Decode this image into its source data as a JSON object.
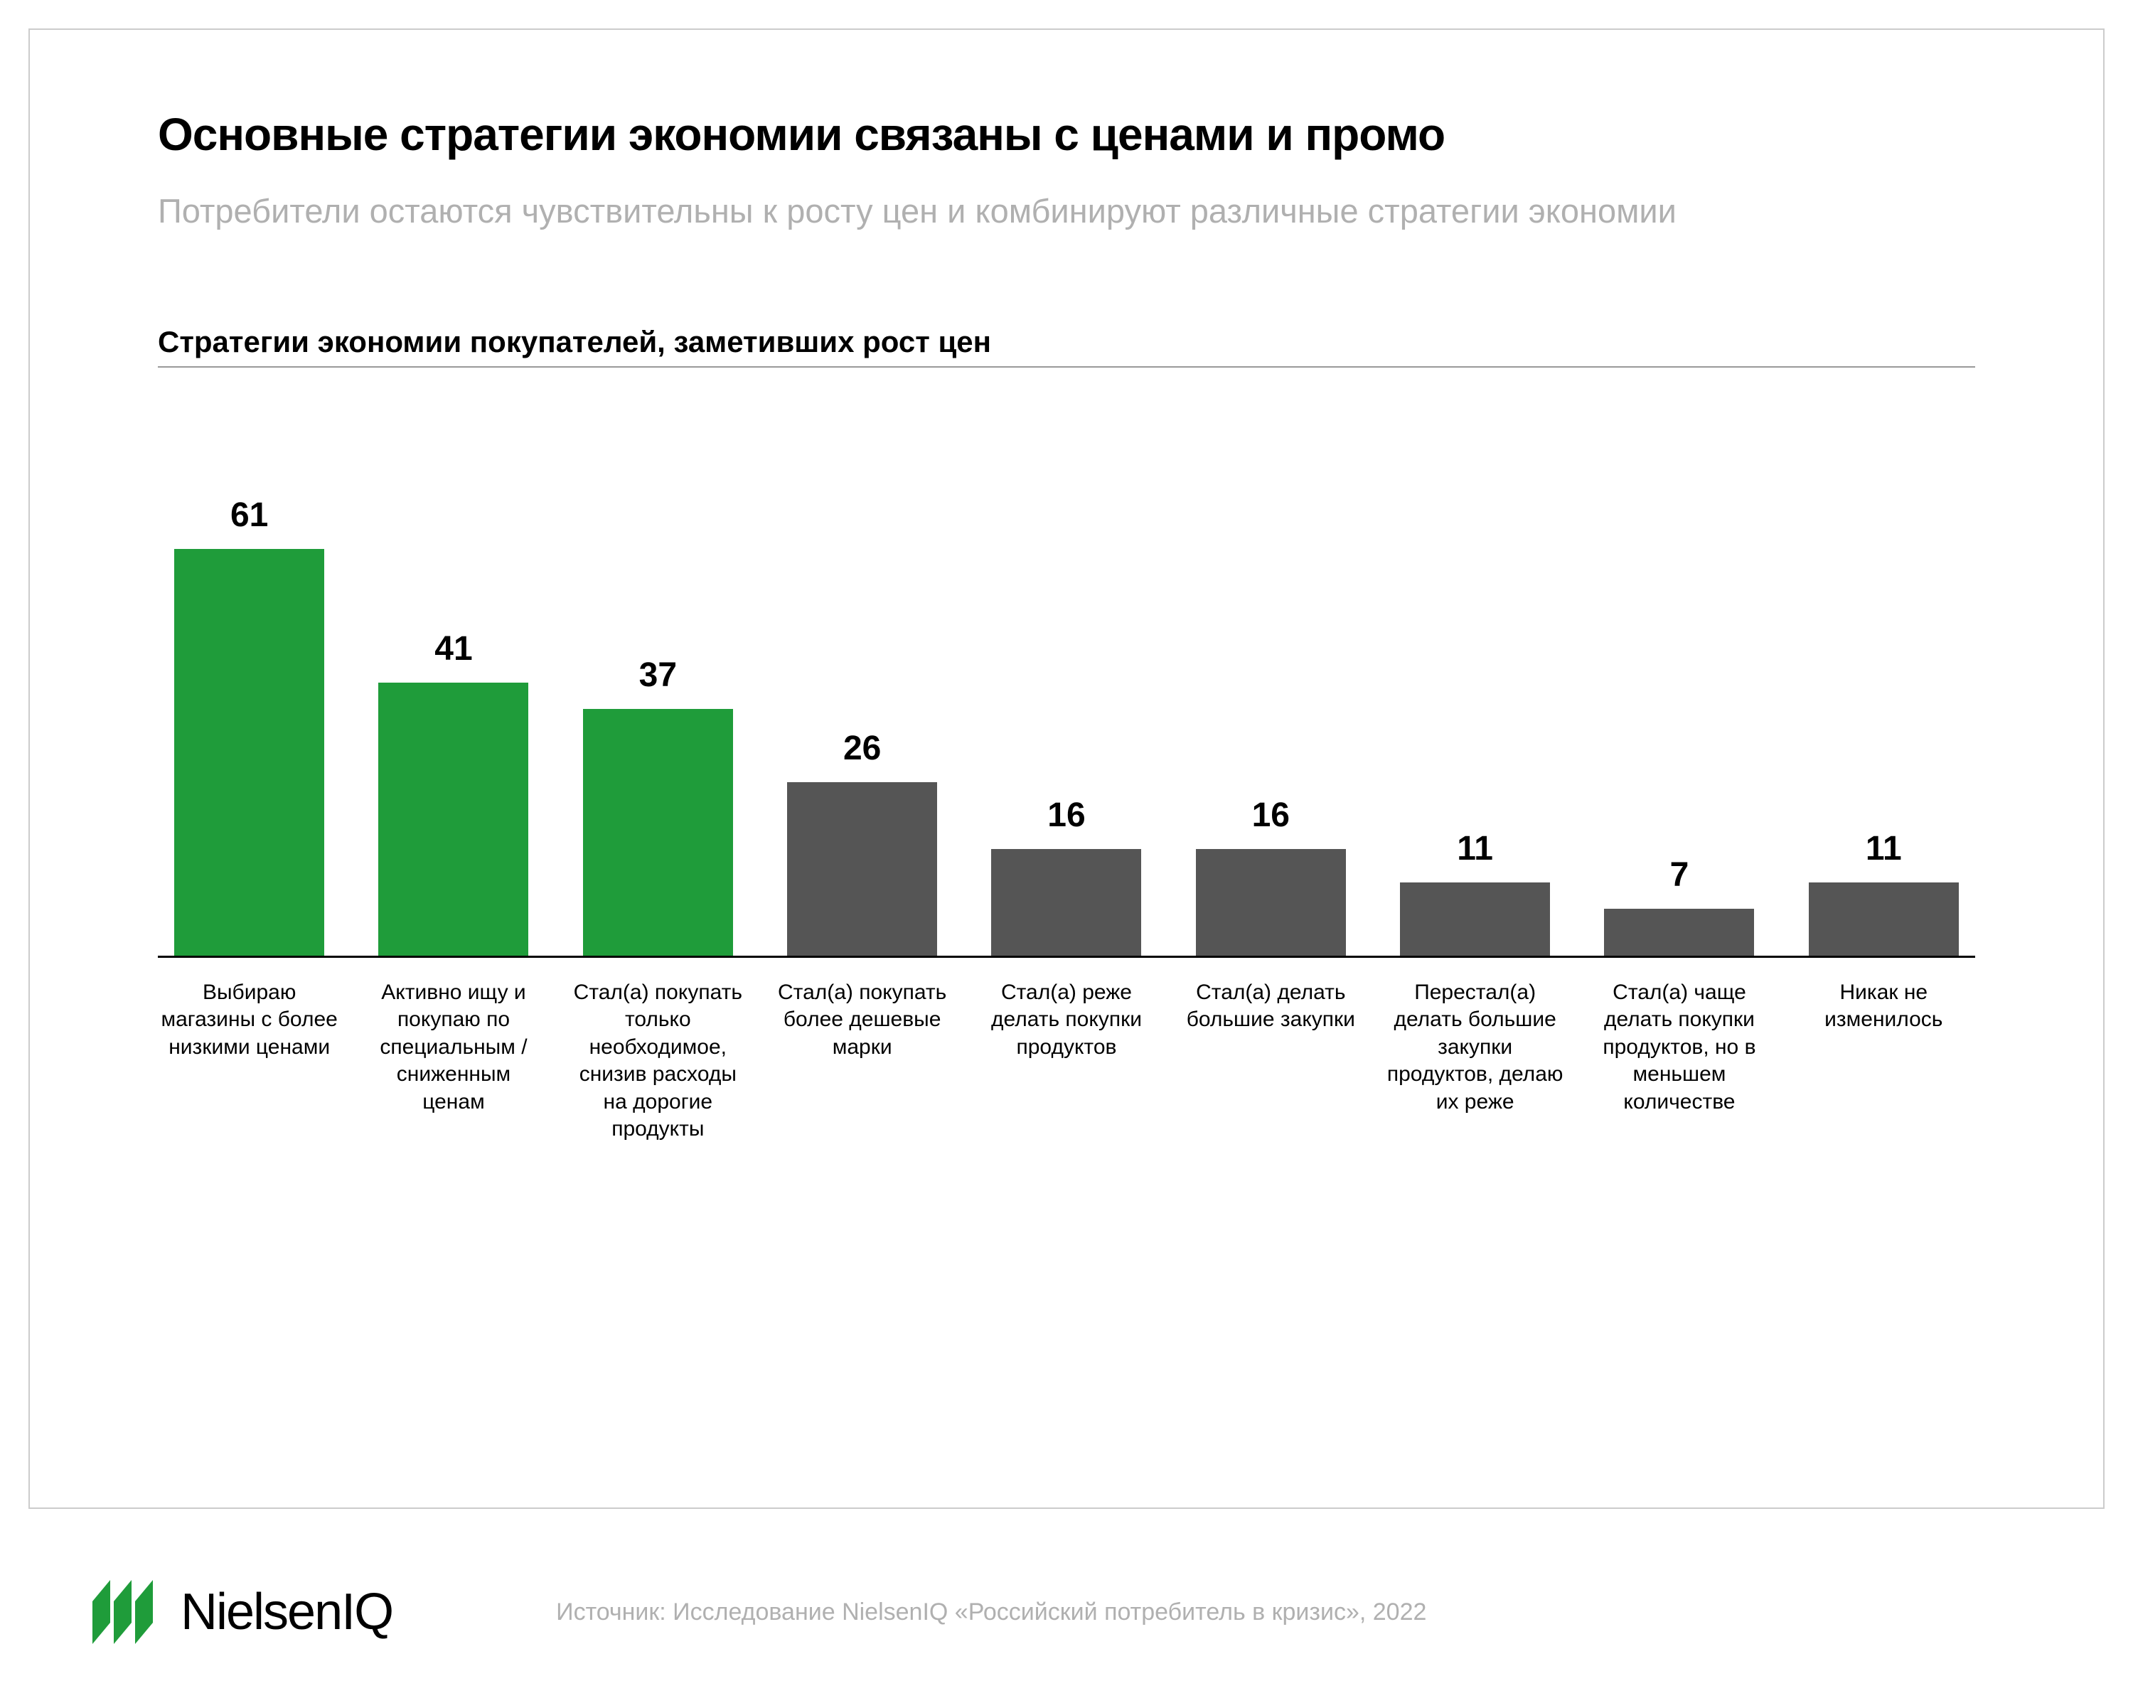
{
  "title": "Основные стратегии экономии связаны с ценами и промо",
  "subtitle": "Потребители остаются чувствительны к росту цен и комбинируют различные стратегии экономии",
  "chart": {
    "type": "bar",
    "title": "Стратегии экономии покупателей, заметивших рост цен",
    "max_value": 64,
    "value_fontsize": 48,
    "label_fontsize": 30,
    "axis_color": "#000000",
    "background_color": "#ffffff",
    "items": [
      {
        "label": "Выбираю магазины с более низкими ценами",
        "value": 61,
        "color": "#1f9c3a"
      },
      {
        "label": "Активно ищу и покупаю по специальным / сниженным ценам",
        "value": 41,
        "color": "#1f9c3a"
      },
      {
        "label": "Стал(а) покупать только необходимое, снизив расходы на дорогие продукты",
        "value": 37,
        "color": "#1f9c3a"
      },
      {
        "label": "Стал(а) покупать более дешевые марки",
        "value": 26,
        "color": "#555555"
      },
      {
        "label": "Стал(а) реже делать покупки продуктов",
        "value": 16,
        "color": "#555555"
      },
      {
        "label": "Стал(а) делать большие закупки",
        "value": 16,
        "color": "#555555"
      },
      {
        "label": "Перестал(а) делать большие закупки продуктов, делаю их реже",
        "value": 11,
        "color": "#555555"
      },
      {
        "label": "Стал(а) чаще делать покупки продуктов, но в меньшем количестве",
        "value": 7,
        "color": "#555555"
      },
      {
        "label": "Никак не изменилось",
        "value": 11,
        "color": "#555555"
      }
    ]
  },
  "logo": {
    "brand": "NielsenIQ",
    "mark_color": "#1f9c3a"
  },
  "source": "Источник: Исследование NielsenIQ «Российский потребитель в кризис», 2022"
}
